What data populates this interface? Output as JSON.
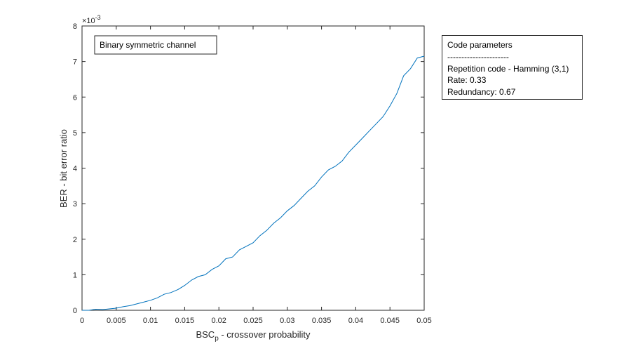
{
  "chart_data": {
    "type": "line",
    "title": "",
    "xlabel_main": "BSC",
    "xlabel_sub": "p",
    "xlabel_rest": " -  crossover probability",
    "ylabel": "BER - bit error ratio",
    "y_exponent_label": "×10",
    "y_exponent_value": "-3",
    "xlim": [
      0,
      0.05
    ],
    "ylim": [
      0,
      0.008
    ],
    "xticks": [
      0,
      0.005,
      0.01,
      0.015,
      0.02,
      0.025,
      0.03,
      0.035,
      0.04,
      0.045,
      0.05
    ],
    "xtick_labels": [
      "0",
      "0.005",
      "0.01",
      "0.015",
      "0.02",
      "0.025",
      "0.03",
      "0.035",
      "0.04",
      "0.045",
      "0.05"
    ],
    "yticks": [
      0,
      0.001,
      0.002,
      0.003,
      0.004,
      0.005,
      0.006,
      0.007,
      0.008
    ],
    "ytick_labels": [
      "0",
      "1",
      "2",
      "3",
      "4",
      "5",
      "6",
      "7",
      "8"
    ],
    "grid": false,
    "series": [
      {
        "color": "#0072BD",
        "x": [
          0,
          0.001,
          0.002,
          0.003,
          0.004,
          0.005,
          0.006,
          0.007,
          0.008,
          0.009,
          0.01,
          0.011,
          0.012,
          0.013,
          0.014,
          0.015,
          0.016,
          0.017,
          0.018,
          0.019,
          0.02,
          0.021,
          0.022,
          0.023,
          0.024,
          0.025,
          0.026,
          0.027,
          0.028,
          0.029,
          0.03,
          0.031,
          0.032,
          0.033,
          0.034,
          0.035,
          0.036,
          0.037,
          0.038,
          0.039,
          0.04,
          0.041,
          0.042,
          0.043,
          0.044,
          0.045,
          0.046,
          0.047,
          0.048,
          0.049,
          0.05
        ],
        "y": [
          0,
          0.0,
          3e-05,
          2e-05,
          4e-05,
          6e-05,
          0.0001,
          0.00013,
          0.00018,
          0.00023,
          0.00028,
          0.00035,
          0.00045,
          0.0005,
          0.00058,
          0.0007,
          0.00085,
          0.00095,
          0.001,
          0.00115,
          0.00125,
          0.00145,
          0.0015,
          0.0017,
          0.0018,
          0.0019,
          0.0021,
          0.00225,
          0.00245,
          0.0026,
          0.0028,
          0.00295,
          0.00315,
          0.00335,
          0.0035,
          0.00375,
          0.00395,
          0.00405,
          0.0042,
          0.00445,
          0.00465,
          0.00485,
          0.00505,
          0.00525,
          0.00545,
          0.00575,
          0.0061,
          0.0066,
          0.0068,
          0.0071,
          0.00715
        ]
      }
    ]
  },
  "annotations": {
    "channel_label": "Binary symmetric channel",
    "params": {
      "title": "Code parameters",
      "separator": "----------------------",
      "code": "Repetition code - Hamming (3,1)",
      "rate": "Rate: 0.33",
      "redundancy": "Redundancy: 0.67"
    }
  }
}
